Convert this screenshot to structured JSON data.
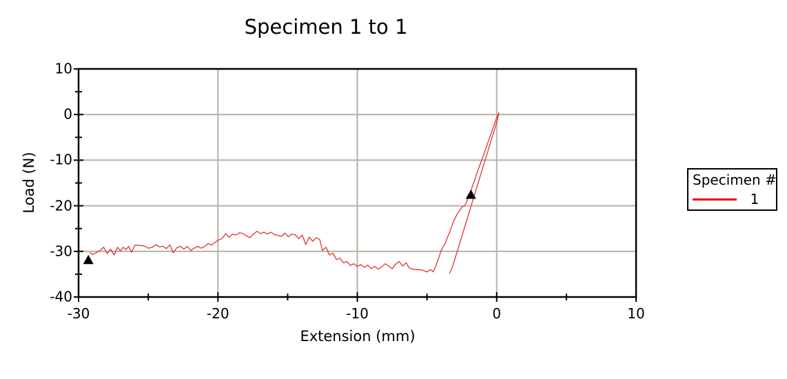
{
  "chart_data": {
    "type": "line",
    "title": "Specimen 1 to 1",
    "xlabel": "Extension (mm)",
    "ylabel": "Load (N)",
    "xlim": [
      -30,
      10
    ],
    "ylim": [
      -40,
      10
    ],
    "x_ticks_major": [
      -30,
      -20,
      -10,
      0,
      10
    ],
    "x_ticks_minor": [
      -25,
      -15,
      -5,
      5
    ],
    "y_ticks_major": [
      10,
      0,
      -10,
      -20,
      -30,
      -40
    ],
    "y_ticks_minor": [
      5,
      -5,
      -15,
      -25,
      -35
    ],
    "grid": "major gridlines only, interior of plot box",
    "legend": {
      "position": "right of plot",
      "title": "Specimen #",
      "items": [
        {
          "label": "1",
          "color": "#ee0000"
        }
      ]
    },
    "colors": {
      "background": "#ffffff",
      "axis": "#000000",
      "grid": "#b5b1a6",
      "curve": "#dd3333",
      "marker": "#000000"
    },
    "markers": {
      "shape": "triangle-up",
      "color": "#000000",
      "points": [
        [
          -29.3,
          -31.8
        ],
        [
          -1.85,
          -17.5
        ]
      ]
    },
    "series": [
      {
        "name": "1",
        "color": "#dd3333",
        "points": [
          [
            -29.2,
            -30.2
          ],
          [
            -29.0,
            -30.7
          ],
          [
            -28.75,
            -30.3
          ],
          [
            -28.5,
            -29.9
          ],
          [
            -28.2,
            -29.1
          ],
          [
            -27.95,
            -30.5
          ],
          [
            -27.7,
            -29.5
          ],
          [
            -27.45,
            -30.8
          ],
          [
            -27.2,
            -29.1
          ],
          [
            -27.0,
            -29.9
          ],
          [
            -26.8,
            -29.1
          ],
          [
            -26.6,
            -29.6
          ],
          [
            -26.4,
            -28.9
          ],
          [
            -26.2,
            -30.2
          ],
          [
            -25.95,
            -28.6
          ],
          [
            -25.6,
            -28.7
          ],
          [
            -25.3,
            -28.8
          ],
          [
            -25.0,
            -29.3
          ],
          [
            -24.7,
            -29.1
          ],
          [
            -24.45,
            -28.5
          ],
          [
            -24.2,
            -29.0
          ],
          [
            -23.95,
            -28.9
          ],
          [
            -23.7,
            -29.4
          ],
          [
            -23.45,
            -28.6
          ],
          [
            -23.2,
            -30.3
          ],
          [
            -22.95,
            -29.2
          ],
          [
            -22.7,
            -28.9
          ],
          [
            -22.45,
            -29.5
          ],
          [
            -22.2,
            -28.9
          ],
          [
            -21.95,
            -29.8
          ],
          [
            -21.7,
            -29.3
          ],
          [
            -21.45,
            -28.9
          ],
          [
            -21.2,
            -29.3
          ],
          [
            -20.95,
            -28.9
          ],
          [
            -20.7,
            -28.3
          ],
          [
            -20.45,
            -28.6
          ],
          [
            -20.2,
            -28.0
          ],
          [
            -19.95,
            -27.5
          ],
          [
            -19.7,
            -27.2
          ],
          [
            -19.45,
            -26.1
          ],
          [
            -19.2,
            -26.9
          ],
          [
            -18.95,
            -26.2
          ],
          [
            -18.7,
            -26.4
          ],
          [
            -18.45,
            -25.9
          ],
          [
            -18.2,
            -26.1
          ],
          [
            -17.95,
            -26.6
          ],
          [
            -17.7,
            -27.0
          ],
          [
            -17.45,
            -26.2
          ],
          [
            -17.2,
            -25.6
          ],
          [
            -16.95,
            -26.1
          ],
          [
            -16.7,
            -25.8
          ],
          [
            -16.45,
            -26.2
          ],
          [
            -16.2,
            -25.8
          ],
          [
            -15.95,
            -26.3
          ],
          [
            -15.7,
            -26.5
          ],
          [
            -15.45,
            -26.7
          ],
          [
            -15.2,
            -26.0
          ],
          [
            -14.95,
            -26.8
          ],
          [
            -14.7,
            -26.2
          ],
          [
            -14.45,
            -26.4
          ],
          [
            -14.2,
            -27.2
          ],
          [
            -13.95,
            -26.4
          ],
          [
            -13.7,
            -28.5
          ],
          [
            -13.45,
            -26.9
          ],
          [
            -13.2,
            -27.8
          ],
          [
            -12.95,
            -27.0
          ],
          [
            -12.7,
            -27.4
          ],
          [
            -12.5,
            -29.8
          ],
          [
            -12.25,
            -29.1
          ],
          [
            -12.0,
            -30.8
          ],
          [
            -11.75,
            -30.4
          ],
          [
            -11.5,
            -31.8
          ],
          [
            -11.25,
            -31.5
          ],
          [
            -11.0,
            -32.5
          ],
          [
            -10.75,
            -32.2
          ],
          [
            -10.5,
            -33.1
          ],
          [
            -10.25,
            -32.7
          ],
          [
            -10.0,
            -33.3
          ],
          [
            -9.75,
            -32.9
          ],
          [
            -9.5,
            -33.5
          ],
          [
            -9.25,
            -33.0
          ],
          [
            -9.0,
            -33.8
          ],
          [
            -8.75,
            -33.3
          ],
          [
            -8.5,
            -33.9
          ],
          [
            -8.25,
            -33.4
          ],
          [
            -8.0,
            -32.7
          ],
          [
            -7.75,
            -33.2
          ],
          [
            -7.5,
            -33.8
          ],
          [
            -7.25,
            -32.8
          ],
          [
            -7.0,
            -32.2
          ],
          [
            -6.75,
            -33.2
          ],
          [
            -6.5,
            -32.5
          ],
          [
            -6.25,
            -33.7
          ],
          [
            -6.0,
            -33.9
          ],
          [
            -5.75,
            -34.0
          ],
          [
            -5.5,
            -34.0
          ],
          [
            -5.25,
            -34.2
          ],
          [
            -5.0,
            -34.5
          ],
          [
            -4.75,
            -34.0
          ],
          [
            -4.55,
            -34.5
          ],
          [
            -4.35,
            -33.1
          ],
          [
            -4.15,
            -31.3
          ],
          [
            -4.0,
            -29.9
          ],
          [
            -3.85,
            -29.0
          ],
          [
            -3.7,
            -28.3
          ],
          [
            -3.55,
            -27.0
          ],
          [
            -3.4,
            -26.0
          ],
          [
            -3.25,
            -24.7
          ],
          [
            -3.05,
            -23.1
          ],
          [
            -2.85,
            -21.9
          ],
          [
            -2.65,
            -21.0
          ],
          [
            -2.5,
            -20.3
          ],
          [
            -2.3,
            -20.0
          ],
          [
            -2.15,
            -19.1
          ],
          [
            -2.0,
            -17.9
          ],
          [
            -1.8,
            -16.3
          ],
          [
            -1.6,
            -14.5
          ],
          [
            -1.4,
            -12.7
          ],
          [
            -1.2,
            -11.0
          ],
          [
            -1.0,
            -9.4
          ],
          [
            -0.8,
            -7.6
          ],
          [
            -0.6,
            -5.9
          ],
          [
            -0.45,
            -4.6
          ],
          [
            -0.3,
            -3.3
          ],
          [
            -0.15,
            -1.9
          ],
          [
            0.0,
            -0.6
          ],
          [
            0.15,
            0.4
          ],
          [
            0.05,
            -1.2
          ],
          [
            -0.35,
            -5.2
          ],
          [
            -0.85,
            -10.2
          ],
          [
            -1.35,
            -15.2
          ],
          [
            -1.85,
            -20.2
          ],
          [
            -2.35,
            -25.2
          ],
          [
            -2.85,
            -30.2
          ],
          [
            -3.2,
            -33.6
          ],
          [
            -3.4,
            -34.9
          ]
        ]
      }
    ]
  }
}
